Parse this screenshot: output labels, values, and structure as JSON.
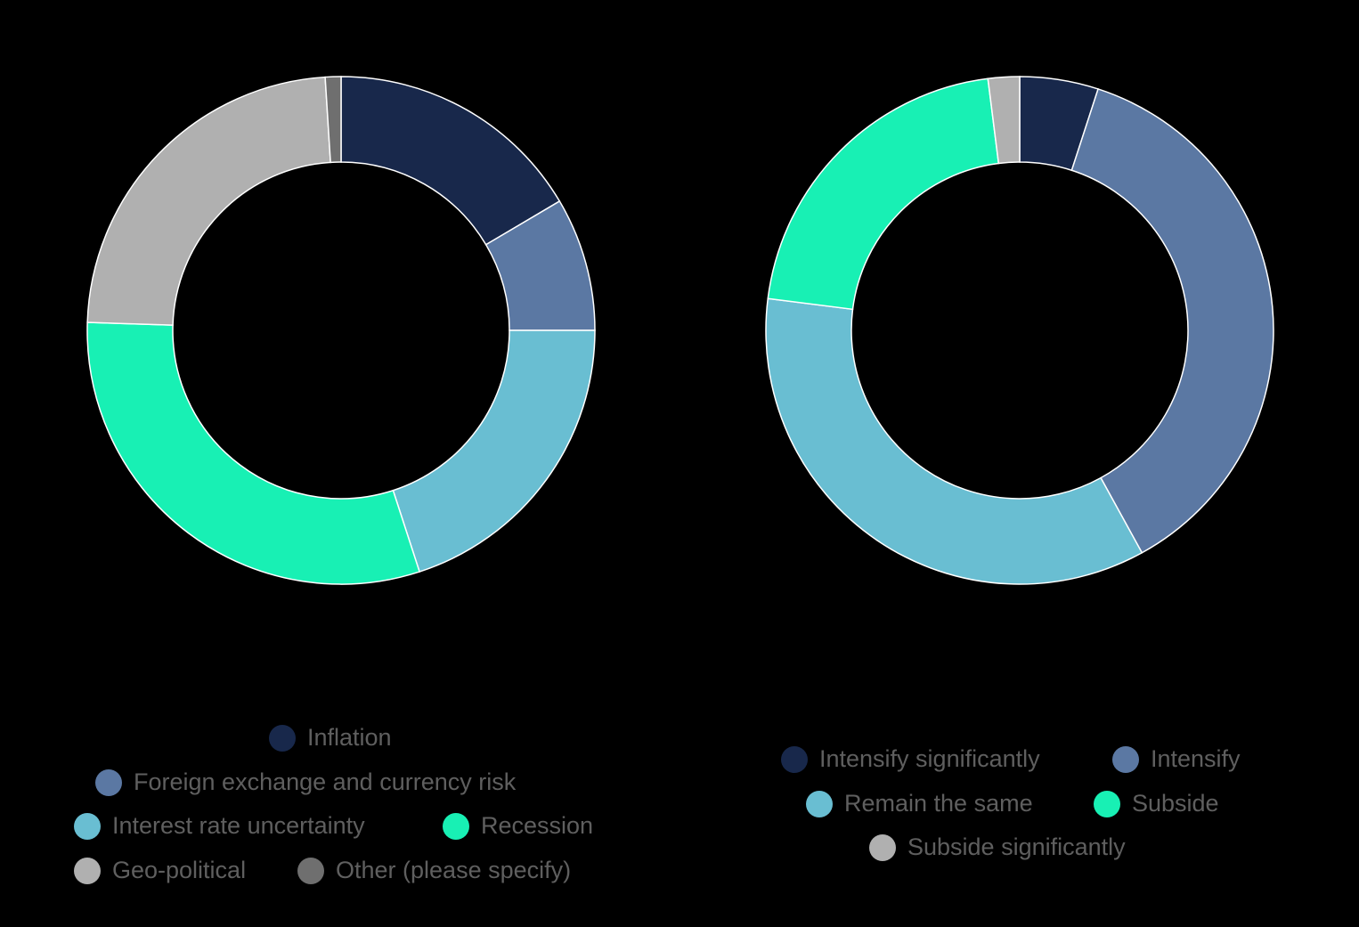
{
  "chart_data": [
    {
      "type": "pie",
      "donut": true,
      "title": "",
      "labels": [
        "Inflation",
        "Foreign exchange and currency risk",
        "Interest rate uncertainty",
        "Recession",
        "Geo-political",
        "Other (please specify)"
      ],
      "values": [
        16.5,
        8.5,
        20.0,
        30.5,
        23.5,
        1.0
      ],
      "unit": "%",
      "colors": [
        "#18284b",
        "#5b78a3",
        "#69bed2",
        "#18f0b4",
        "#b0b0b0",
        "#6f6f6f"
      ],
      "legend": {
        "placement": "bottom",
        "rows": [
          [
            "Inflation"
          ],
          [
            "Foreign exchange and currency risk"
          ],
          [
            "Interest rate uncertainty",
            "Recession"
          ],
          [
            "Geo-political",
            "Other (please specify)"
          ]
        ]
      }
    },
    {
      "type": "pie",
      "donut": true,
      "title": "",
      "labels": [
        "Intensify significantly",
        "Intensify",
        "Remain the same",
        "Subside",
        "Subside significantly"
      ],
      "values": [
        5.0,
        37.0,
        35.0,
        21.0,
        2.0
      ],
      "unit": "%",
      "colors": [
        "#18284b",
        "#5b78a3",
        "#69bed2",
        "#18f0b4",
        "#b0b0b0"
      ],
      "legend": {
        "placement": "bottom",
        "rows": [
          [
            "Intensify significantly",
            "Intensify"
          ],
          [
            "Remain the same",
            "Subside"
          ],
          [
            "Subside significantly"
          ]
        ]
      }
    }
  ]
}
